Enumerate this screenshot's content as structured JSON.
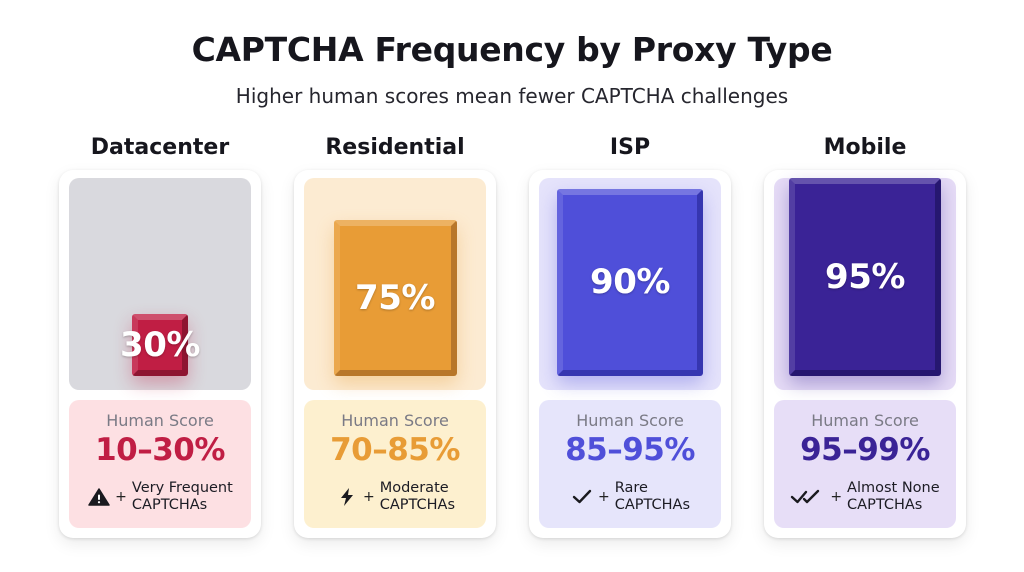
{
  "title": "CAPTCHA Frequency by Proxy Type",
  "subtitle": "Higher human scores mean fewer CAPTCHA challenges",
  "colors": {
    "datacenter": "#c01e44",
    "residential": "#e89c36",
    "isp": "#4f4fd9",
    "mobile": "#3a2396"
  },
  "chart_data": {
    "type": "bar",
    "title": "CAPTCHA Frequency by Proxy Type",
    "subtitle": "Higher human scores mean fewer CAPTCHA challenges",
    "ylim": [
      0,
      100
    ],
    "categories": [
      "Datacenter",
      "Residential",
      "ISP",
      "Mobile"
    ],
    "values": [
      30,
      75,
      90,
      95
    ],
    "bar_labels": [
      "30%",
      "75%",
      "90%",
      "95%"
    ],
    "human_score_label": "Human Score",
    "human_score_ranges": [
      "10–30%",
      "70–85%",
      "85–95%",
      "95–99%"
    ],
    "frequency_labels": [
      [
        "Very Frequent",
        "CAPTCHAs"
      ],
      [
        "Moderate",
        "CAPTCHAs"
      ],
      [
        "Rare",
        "CAPTCHAs"
      ],
      [
        "Almost None",
        "CAPTCHAs"
      ]
    ],
    "frequency_icons": [
      "warning-icon",
      "lightning-icon",
      "check-icon",
      "double-check-icon"
    ],
    "plus_sign": "+"
  }
}
